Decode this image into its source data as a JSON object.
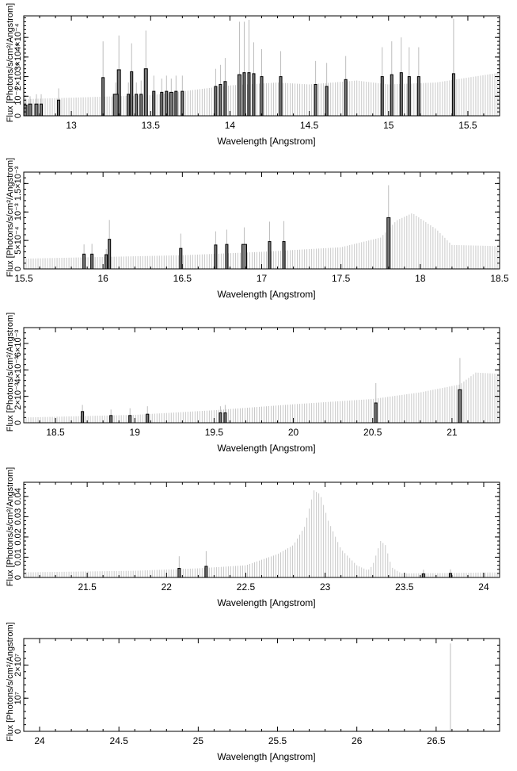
{
  "chart_data": [
    {
      "type": "bar",
      "xlabel": "Wavelength [Angstrom]",
      "ylabel": "Flux [Photons/s/cm²/Angstrom]",
      "xlim": [
        12.7,
        15.7
      ],
      "ylim": [
        0,
        0.00051
      ],
      "xticks": [
        {
          "v": 13,
          "t": "13"
        },
        {
          "v": 13.5,
          "t": "13.5"
        },
        {
          "v": 14,
          "t": "14"
        },
        {
          "v": 14.5,
          "t": "14.5"
        },
        {
          "v": 15,
          "t": "15"
        },
        {
          "v": 15.5,
          "t": "15.5"
        }
      ],
      "yticks": [
        {
          "v": 0,
          "t": "0"
        },
        {
          "v": 0.0001,
          "t": "10⁻⁴"
        },
        {
          "v": 0.0002,
          "t": "2×10⁻⁴"
        },
        {
          "v": 0.0003,
          "t": "3×10⁻⁴"
        },
        {
          "v": 0.0004,
          "t": "4×10⁻⁴"
        }
      ],
      "continuum": [
        [
          12.7,
          8.5e-05
        ],
        [
          13.5,
          0.000105
        ],
        [
          14.0,
          0.000155
        ],
        [
          14.3,
          0.00017
        ],
        [
          14.5,
          0.00016
        ],
        [
          14.8,
          0.00018
        ],
        [
          15.0,
          0.00016
        ],
        [
          15.3,
          0.00017
        ],
        [
          15.7,
          0.00022
        ]
      ],
      "highlighted": [
        {
          "x": 12.71,
          "y": 5.5e-05,
          "err": 4e-05,
          "w": 0.02
        },
        {
          "x": 12.74,
          "y": 6e-05,
          "err": 4e-05,
          "w": 0.02
        },
        {
          "x": 12.78,
          "y": 6e-05,
          "err": 5e-05,
          "w": 0.02
        },
        {
          "x": 12.81,
          "y": 6e-05,
          "err": 5e-05,
          "w": 0.015
        },
        {
          "x": 12.92,
          "y": 8e-05,
          "err": 6e-05,
          "w": 0.015
        },
        {
          "x": 13.2,
          "y": 0.000195,
          "err": 0.000185,
          "w": 0.015
        },
        {
          "x": 13.3,
          "y": 0.000235,
          "err": 0.000175,
          "w": 0.02
        },
        {
          "x": 13.28,
          "y": 0.00011,
          "err": 6e-05,
          "w": 0.03
        },
        {
          "x": 13.36,
          "y": 0.00011,
          "err": 6e-05,
          "w": 0.015
        },
        {
          "x": 13.38,
          "y": 0.000225,
          "err": 0.000145,
          "w": 0.015
        },
        {
          "x": 13.41,
          "y": 0.00011,
          "err": 6e-05,
          "w": 0.015
        },
        {
          "x": 13.44,
          "y": 0.00011,
          "err": 7e-05,
          "w": 0.015
        },
        {
          "x": 13.47,
          "y": 0.00024,
          "err": 0.000195,
          "w": 0.02
        },
        {
          "x": 13.52,
          "y": 0.000125,
          "err": 8e-05,
          "w": 0.015
        },
        {
          "x": 13.57,
          "y": 0.00012,
          "err": 7e-05,
          "w": 0.015
        },
        {
          "x": 13.6,
          "y": 0.000125,
          "err": 8e-05,
          "w": 0.015
        },
        {
          "x": 13.63,
          "y": 0.00012,
          "err": 7e-05,
          "w": 0.02
        },
        {
          "x": 13.66,
          "y": 0.000125,
          "err": 8e-05,
          "w": 0.015
        },
        {
          "x": 13.7,
          "y": 0.000125,
          "err": 8e-05,
          "w": 0.015
        },
        {
          "x": 13.91,
          "y": 0.00015,
          "err": 9e-05,
          "w": 0.015
        },
        {
          "x": 13.94,
          "y": 0.00016,
          "err": 0.0001,
          "w": 0.015
        },
        {
          "x": 13.97,
          "y": 0.000175,
          "err": 0.00012,
          "w": 0.015
        },
        {
          "x": 14.06,
          "y": 0.00021,
          "err": 0.00027,
          "w": 0.02
        },
        {
          "x": 14.09,
          "y": 0.00022,
          "err": 0.00026,
          "w": 0.015
        },
        {
          "x": 14.12,
          "y": 0.00022,
          "err": 0.00027,
          "w": 0.015
        },
        {
          "x": 14.15,
          "y": 0.000215,
          "err": 0.00016,
          "w": 0.015
        },
        {
          "x": 14.2,
          "y": 0.0002,
          "err": 0.00014,
          "w": 0.015
        },
        {
          "x": 14.32,
          "y": 0.0002,
          "err": 0.00013,
          "w": 0.015
        },
        {
          "x": 14.54,
          "y": 0.00016,
          "err": 0.00012,
          "w": 0.015
        },
        {
          "x": 14.61,
          "y": 0.00015,
          "err": 0.00012,
          "w": 0.015
        },
        {
          "x": 14.73,
          "y": 0.000185,
          "err": 0.00012,
          "w": 0.015
        },
        {
          "x": 14.96,
          "y": 0.0002,
          "err": 0.00015,
          "w": 0.015
        },
        {
          "x": 15.02,
          "y": 0.00021,
          "err": 0.00017,
          "w": 0.015
        },
        {
          "x": 15.08,
          "y": 0.00022,
          "err": 0.00018,
          "w": 0.015
        },
        {
          "x": 15.13,
          "y": 0.0002,
          "err": 0.00015,
          "w": 0.015
        },
        {
          "x": 15.19,
          "y": 0.0002,
          "err": 0.00015,
          "w": 0.015
        },
        {
          "x": 15.41,
          "y": 0.000215,
          "err": 0.00028,
          "w": 0.015
        }
      ]
    },
    {
      "type": "bar",
      "xlabel": "Wavelength [Angstrom]",
      "ylabel": "Flux [Photons/s/cm²/Angstrom]",
      "xlim": [
        15.5,
        18.5
      ],
      "ylim": [
        0,
        0.0017
      ],
      "xticks": [
        {
          "v": 15.5,
          "t": "15.5"
        },
        {
          "v": 16,
          "t": "16"
        },
        {
          "v": 16.5,
          "t": "16.5"
        },
        {
          "v": 17,
          "t": "17"
        },
        {
          "v": 17.5,
          "t": "17.5"
        },
        {
          "v": 18,
          "t": "18"
        },
        {
          "v": 18.5,
          "t": "18.5"
        }
      ],
      "yticks": [
        {
          "v": 0,
          "t": "0"
        },
        {
          "v": 0.0005,
          "t": "5×10⁻⁴"
        },
        {
          "v": 0.001,
          "t": "10⁻³"
        },
        {
          "v": 0.0015,
          "t": "1.5×10⁻³"
        }
      ],
      "continuum": [
        [
          15.5,
          0.00018
        ],
        [
          16.5,
          0.00024
        ],
        [
          17.0,
          0.0003
        ],
        [
          17.5,
          0.00038
        ],
        [
          17.75,
          0.00055
        ],
        [
          17.85,
          0.00085
        ],
        [
          17.95,
          0.00098
        ],
        [
          18.1,
          0.0007
        ],
        [
          18.2,
          0.00042
        ],
        [
          18.5,
          0.0004
        ]
      ],
      "highlighted": [
        {
          "x": 15.88,
          "y": 0.00026,
          "err": 0.00017,
          "w": 0.015
        },
        {
          "x": 15.93,
          "y": 0.00026,
          "err": 0.00018,
          "w": 0.015
        },
        {
          "x": 16.02,
          "y": 0.00025,
          "err": 0.0001,
          "w": 0.015
        },
        {
          "x": 16.04,
          "y": 0.00052,
          "err": 0.00034,
          "w": 0.015
        },
        {
          "x": 16.49,
          "y": 0.00036,
          "err": 0.00026,
          "w": 0.015
        },
        {
          "x": 16.71,
          "y": 0.00042,
          "err": 0.00024,
          "w": 0.015
        },
        {
          "x": 16.78,
          "y": 0.00043,
          "err": 0.00026,
          "w": 0.015
        },
        {
          "x": 16.89,
          "y": 0.00043,
          "err": 0.0003,
          "w": 0.03
        },
        {
          "x": 17.05,
          "y": 0.00048,
          "err": 0.00035,
          "w": 0.015
        },
        {
          "x": 17.14,
          "y": 0.00048,
          "err": 0.00036,
          "w": 0.015
        },
        {
          "x": 17.8,
          "y": 0.0009,
          "err": 0.00057,
          "w": 0.02
        }
      ]
    },
    {
      "type": "bar",
      "xlabel": "Wavelength [Angstrom]",
      "ylabel": "Flux [Photons/s/cm²/Angstrom]",
      "xlim": [
        18.3,
        21.3
      ],
      "ylim": [
        0,
        0.0072
      ],
      "xticks": [
        {
          "v": 18.5,
          "t": "18.5"
        },
        {
          "v": 19,
          "t": "19"
        },
        {
          "v": 19.5,
          "t": "19.5"
        },
        {
          "v": 20,
          "t": "20"
        },
        {
          "v": 20.5,
          "t": "20.5"
        },
        {
          "v": 21,
          "t": "21"
        }
      ],
      "yticks": [
        {
          "v": 0,
          "t": "0"
        },
        {
          "v": 0.002,
          "t": "2×10⁻³"
        },
        {
          "v": 0.004,
          "t": "4×10⁻³"
        },
        {
          "v": 0.006,
          "t": "6×10⁻³"
        }
      ],
      "continuum": [
        [
          18.3,
          0.0004
        ],
        [
          19.0,
          0.0006
        ],
        [
          19.5,
          0.00095
        ],
        [
          20.0,
          0.0014
        ],
        [
          20.5,
          0.0018
        ],
        [
          20.8,
          0.0023
        ],
        [
          21.05,
          0.0029
        ],
        [
          21.15,
          0.0038
        ],
        [
          21.3,
          0.0037
        ]
      ],
      "highlighted": [
        {
          "x": 18.67,
          "y": 0.00085,
          "err": 0.0005,
          "w": 0.015
        },
        {
          "x": 18.85,
          "y": 0.00055,
          "err": 0.00045,
          "w": 0.015
        },
        {
          "x": 18.97,
          "y": 0.00055,
          "err": 0.00055,
          "w": 0.015
        },
        {
          "x": 19.08,
          "y": 0.00065,
          "err": 0.0006,
          "w": 0.015
        },
        {
          "x": 19.54,
          "y": 0.00075,
          "err": 0.0005,
          "w": 0.015
        },
        {
          "x": 19.57,
          "y": 0.00075,
          "err": 0.0006,
          "w": 0.015
        },
        {
          "x": 20.52,
          "y": 0.0015,
          "err": 0.0015,
          "w": 0.015
        },
        {
          "x": 21.05,
          "y": 0.0025,
          "err": 0.0024,
          "w": 0.02
        }
      ]
    },
    {
      "type": "bar",
      "xlabel": "Wavelength [Angstrom]",
      "ylabel": "Flux [Photons/s/cm²/Angstrom]",
      "xlim": [
        21.1,
        24.1
      ],
      "ylim": [
        0,
        0.047
      ],
      "xticks": [
        {
          "v": 21.5,
          "t": "21.5"
        },
        {
          "v": 22,
          "t": "22"
        },
        {
          "v": 22.5,
          "t": "22.5"
        },
        {
          "v": 23,
          "t": "23"
        },
        {
          "v": 23.5,
          "t": "23.5"
        },
        {
          "v": 24,
          "t": "24"
        }
      ],
      "yticks": [
        {
          "v": 0,
          "t": "0"
        },
        {
          "v": 0.01,
          "t": "0.01"
        },
        {
          "v": 0.02,
          "t": "0.02"
        },
        {
          "v": 0.03,
          "t": "0.03"
        },
        {
          "v": 0.04,
          "t": "0.04"
        }
      ],
      "continuum": [
        [
          21.1,
          0.0025
        ],
        [
          21.8,
          0.0033
        ],
        [
          22.2,
          0.0045
        ],
        [
          22.5,
          0.006
        ],
        [
          22.7,
          0.0115
        ],
        [
          22.8,
          0.016
        ],
        [
          22.87,
          0.025
        ],
        [
          22.93,
          0.043
        ],
        [
          22.97,
          0.041
        ],
        [
          23.02,
          0.028
        ],
        [
          23.1,
          0.014
        ],
        [
          23.2,
          0.006
        ],
        [
          23.27,
          0.0035
        ],
        [
          23.3,
          0.006
        ],
        [
          23.35,
          0.018
        ],
        [
          23.38,
          0.016
        ],
        [
          23.42,
          0.005
        ],
        [
          23.48,
          0.002
        ],
        [
          24.1,
          0.0025
        ]
      ],
      "highlighted": [
        {
          "x": 22.08,
          "y": 0.0045,
          "err": 0.006,
          "w": 0.015
        },
        {
          "x": 22.25,
          "y": 0.0055,
          "err": 0.0075,
          "w": 0.015
        },
        {
          "x": 23.62,
          "y": 0.0018,
          "err": 0.002,
          "w": 0.015
        },
        {
          "x": 23.79,
          "y": 0.002,
          "err": 0.002,
          "w": 0.015
        }
      ]
    },
    {
      "type": "bar",
      "xlabel": "Wavelength [Angstrom]",
      "ylabel": "Flux [Photons/s/cm²/Angstrom]",
      "xlim": [
        23.9,
        26.9
      ],
      "ylim": [
        0,
        28000000
      ],
      "xticks": [
        {
          "v": 24,
          "t": "24"
        },
        {
          "v": 24.5,
          "t": "24.5"
        },
        {
          "v": 25,
          "t": "25"
        },
        {
          "v": 25.5,
          "t": "25.5"
        },
        {
          "v": 26,
          "t": "26"
        },
        {
          "v": 26.5,
          "t": "26.5"
        }
      ],
      "yticks": [
        {
          "v": 0,
          "t": "0"
        },
        {
          "v": 10000000,
          "t": "10⁷"
        },
        {
          "v": 20000000,
          "t": "2×10⁷"
        }
      ],
      "continuum": [],
      "highlighted": [
        {
          "x": 26.59,
          "y": 0,
          "err": 26500000,
          "w": 0.005
        }
      ]
    }
  ]
}
